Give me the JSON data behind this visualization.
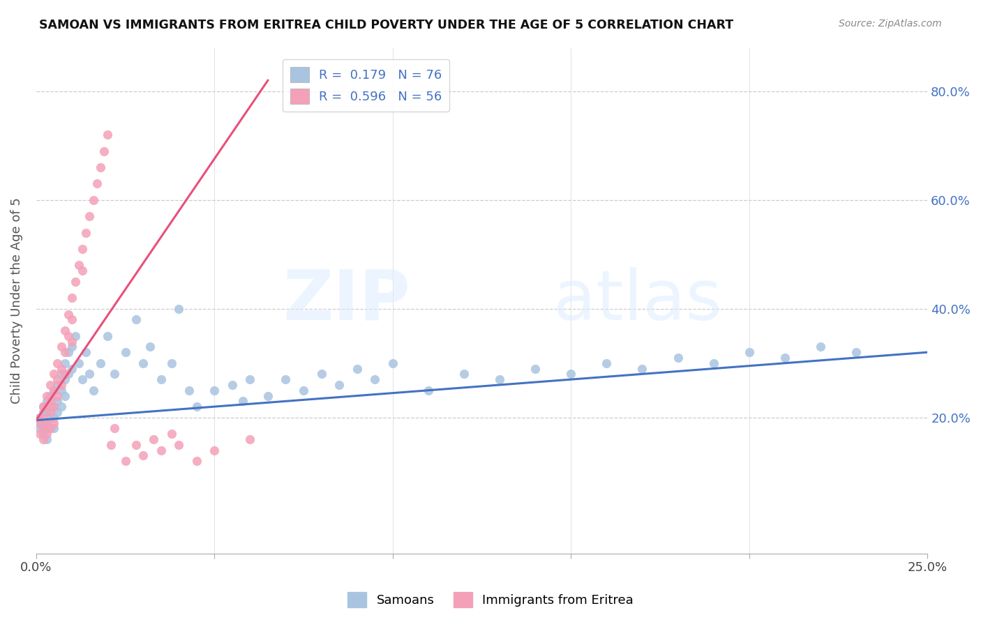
{
  "title": "SAMOAN VS IMMIGRANTS FROM ERITREA CHILD POVERTY UNDER THE AGE OF 5 CORRELATION CHART",
  "source": "Source: ZipAtlas.com",
  "ylabel": "Child Poverty Under the Age of 5",
  "x_min": 0.0,
  "x_max": 0.25,
  "y_min": -0.05,
  "y_max": 0.88,
  "samoan_color": "#a8c4e0",
  "eritrea_color": "#f4a0b8",
  "samoan_line_color": "#4472c4",
  "eritrea_line_color": "#e8507a",
  "legend_R1": "0.179",
  "legend_N1": "76",
  "legend_R2": "0.596",
  "legend_N2": "56",
  "samoan_x": [
    0.001,
    0.001,
    0.001,
    0.002,
    0.002,
    0.002,
    0.002,
    0.003,
    0.003,
    0.003,
    0.003,
    0.003,
    0.004,
    0.004,
    0.004,
    0.004,
    0.005,
    0.005,
    0.005,
    0.005,
    0.006,
    0.006,
    0.006,
    0.007,
    0.007,
    0.007,
    0.008,
    0.008,
    0.008,
    0.009,
    0.009,
    0.01,
    0.01,
    0.011,
    0.012,
    0.013,
    0.014,
    0.015,
    0.016,
    0.018,
    0.02,
    0.022,
    0.025,
    0.028,
    0.03,
    0.032,
    0.035,
    0.038,
    0.04,
    0.043,
    0.045,
    0.05,
    0.055,
    0.058,
    0.06,
    0.065,
    0.07,
    0.075,
    0.08,
    0.085,
    0.09,
    0.095,
    0.1,
    0.11,
    0.12,
    0.13,
    0.14,
    0.15,
    0.16,
    0.17,
    0.18,
    0.19,
    0.2,
    0.21,
    0.22,
    0.23
  ],
  "samoan_y": [
    0.2,
    0.19,
    0.18,
    0.22,
    0.21,
    0.19,
    0.17,
    0.23,
    0.21,
    0.19,
    0.18,
    0.16,
    0.24,
    0.22,
    0.2,
    0.18,
    0.25,
    0.22,
    0.2,
    0.18,
    0.26,
    0.23,
    0.21,
    0.28,
    0.25,
    0.22,
    0.3,
    0.27,
    0.24,
    0.32,
    0.28,
    0.33,
    0.29,
    0.35,
    0.3,
    0.27,
    0.32,
    0.28,
    0.25,
    0.3,
    0.35,
    0.28,
    0.32,
    0.38,
    0.3,
    0.33,
    0.27,
    0.3,
    0.4,
    0.25,
    0.22,
    0.25,
    0.26,
    0.23,
    0.27,
    0.24,
    0.27,
    0.25,
    0.28,
    0.26,
    0.29,
    0.27,
    0.3,
    0.25,
    0.28,
    0.27,
    0.29,
    0.28,
    0.3,
    0.29,
    0.31,
    0.3,
    0.32,
    0.31,
    0.33,
    0.32
  ],
  "eritrea_x": [
    0.001,
    0.001,
    0.001,
    0.002,
    0.002,
    0.002,
    0.002,
    0.003,
    0.003,
    0.003,
    0.003,
    0.004,
    0.004,
    0.004,
    0.004,
    0.005,
    0.005,
    0.005,
    0.005,
    0.006,
    0.006,
    0.006,
    0.007,
    0.007,
    0.007,
    0.008,
    0.008,
    0.008,
    0.009,
    0.009,
    0.01,
    0.01,
    0.01,
    0.011,
    0.012,
    0.013,
    0.013,
    0.014,
    0.015,
    0.016,
    0.017,
    0.018,
    0.019,
    0.02,
    0.021,
    0.022,
    0.025,
    0.028,
    0.03,
    0.033,
    0.035,
    0.038,
    0.04,
    0.045,
    0.05,
    0.06
  ],
  "eritrea_y": [
    0.2,
    0.19,
    0.17,
    0.22,
    0.2,
    0.18,
    0.16,
    0.24,
    0.22,
    0.19,
    0.17,
    0.26,
    0.23,
    0.21,
    0.18,
    0.28,
    0.25,
    0.22,
    0.19,
    0.3,
    0.27,
    0.24,
    0.33,
    0.29,
    0.26,
    0.36,
    0.32,
    0.28,
    0.39,
    0.35,
    0.42,
    0.38,
    0.34,
    0.45,
    0.48,
    0.51,
    0.47,
    0.54,
    0.57,
    0.6,
    0.63,
    0.66,
    0.69,
    0.72,
    0.15,
    0.18,
    0.12,
    0.15,
    0.13,
    0.16,
    0.14,
    0.17,
    0.15,
    0.12,
    0.14,
    0.16
  ],
  "samoan_line_x": [
    0.0,
    0.25
  ],
  "samoan_line_y": [
    0.195,
    0.32
  ],
  "eritrea_line_x": [
    0.0,
    0.065
  ],
  "eritrea_line_y": [
    0.195,
    0.82
  ]
}
